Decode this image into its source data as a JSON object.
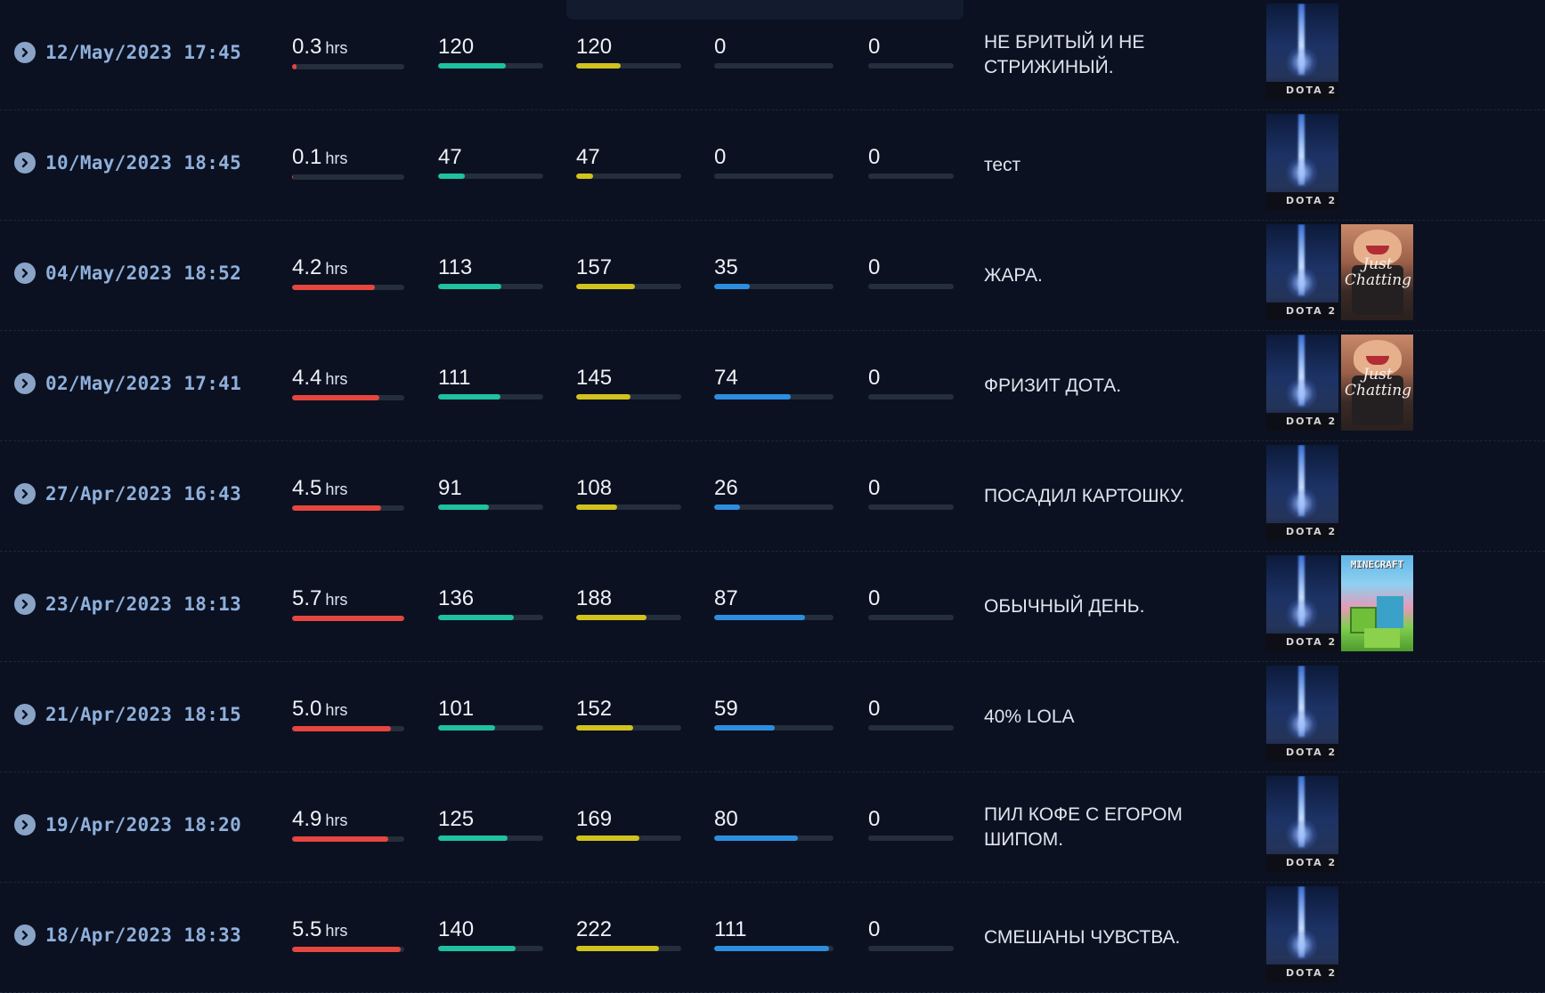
{
  "colors": {
    "background": "#0b1120",
    "hours": "#e5463f",
    "avg_viewers": "#1fc1a0",
    "peak_viewers": "#d1c21e",
    "followers": "#2d8ee0",
    "subs": "#6c7d95",
    "track": "#252e3b",
    "date": "#8fb0dc"
  },
  "streams": [
    {
      "date": "12/May/2023 17:45",
      "hours": "0.3",
      "hours_unit": "hrs",
      "hours_pct": 4,
      "avg": "120",
      "avg_pct": 64,
      "peak": "120",
      "peak_pct": 42,
      "followers": "0",
      "followers_pct": 0,
      "subs": "0",
      "subs_pct": 0,
      "title": "НЕ БРИТЫЙ И НЕ СТРИЖИНЫЙ.",
      "games": [
        {
          "type": "dota",
          "label": "DOTA 2"
        }
      ]
    },
    {
      "date": "10/May/2023 18:45",
      "hours": "0.1",
      "hours_unit": "hrs",
      "hours_pct": 1,
      "avg": "47",
      "avg_pct": 25,
      "peak": "47",
      "peak_pct": 16,
      "followers": "0",
      "followers_pct": 0,
      "subs": "0",
      "subs_pct": 0,
      "title": "тест",
      "games": [
        {
          "type": "dota",
          "label": "DOTA 2"
        }
      ]
    },
    {
      "date": "04/May/2023 18:52",
      "hours": "4.2",
      "hours_unit": "hrs",
      "hours_pct": 74,
      "avg": "113",
      "avg_pct": 60,
      "peak": "157",
      "peak_pct": 56,
      "followers": "35",
      "followers_pct": 30,
      "subs": "0",
      "subs_pct": 0,
      "title": "ЖАРА.",
      "games": [
        {
          "type": "dota",
          "label": "DOTA 2"
        },
        {
          "type": "chat",
          "label": "Just Chatting"
        }
      ]
    },
    {
      "date": "02/May/2023 17:41",
      "hours": "4.4",
      "hours_unit": "hrs",
      "hours_pct": 78,
      "avg": "111",
      "avg_pct": 59,
      "peak": "145",
      "peak_pct": 52,
      "followers": "74",
      "followers_pct": 64,
      "subs": "0",
      "subs_pct": 0,
      "title": "ФРИЗИТ ДОТА.",
      "games": [
        {
          "type": "dota",
          "label": "DOTA 2"
        },
        {
          "type": "chat",
          "label": "Just Chatting"
        }
      ]
    },
    {
      "date": "27/Apr/2023 16:43",
      "hours": "4.5",
      "hours_unit": "hrs",
      "hours_pct": 79,
      "avg": "91",
      "avg_pct": 48,
      "peak": "108",
      "peak_pct": 39,
      "followers": "26",
      "followers_pct": 22,
      "subs": "0",
      "subs_pct": 0,
      "title": "ПОСАДИЛ КАРТОШКУ.",
      "games": [
        {
          "type": "dota",
          "label": "DOTA 2"
        }
      ]
    },
    {
      "date": "23/Apr/2023 18:13",
      "hours": "5.7",
      "hours_unit": "hrs",
      "hours_pct": 100,
      "avg": "136",
      "avg_pct": 72,
      "peak": "188",
      "peak_pct": 67,
      "followers": "87",
      "followers_pct": 76,
      "subs": "0",
      "subs_pct": 0,
      "title": "ОБЫЧНЫЙ ДЕНЬ.",
      "games": [
        {
          "type": "dota",
          "label": "DOTA 2"
        },
        {
          "type": "mc",
          "label": "MINECRAFT"
        }
      ]
    },
    {
      "date": "21/Apr/2023 18:15",
      "hours": "5.0",
      "hours_unit": "hrs",
      "hours_pct": 88,
      "avg": "101",
      "avg_pct": 54,
      "peak": "152",
      "peak_pct": 54,
      "followers": "59",
      "followers_pct": 51,
      "subs": "0",
      "subs_pct": 0,
      "title": "40% LOLA",
      "games": [
        {
          "type": "dota",
          "label": "DOTA 2"
        }
      ]
    },
    {
      "date": "19/Apr/2023 18:20",
      "hours": "4.9",
      "hours_unit": "hrs",
      "hours_pct": 86,
      "avg": "125",
      "avg_pct": 66,
      "peak": "169",
      "peak_pct": 60,
      "followers": "80",
      "followers_pct": 70,
      "subs": "0",
      "subs_pct": 0,
      "title": "ПИЛ КОФЕ С ЕГОРОМ ШИПОМ.",
      "games": [
        {
          "type": "dota",
          "label": "DOTA 2"
        }
      ]
    },
    {
      "date": "18/Apr/2023 18:33",
      "hours": "5.5",
      "hours_unit": "hrs",
      "hours_pct": 97,
      "avg": "140",
      "avg_pct": 74,
      "peak": "222",
      "peak_pct": 79,
      "followers": "111",
      "followers_pct": 96,
      "subs": "0",
      "subs_pct": 0,
      "title": "СМЕШАНЫ ЧУВСТВА.",
      "games": [
        {
          "type": "dota",
          "label": "DOTA 2"
        }
      ]
    }
  ]
}
